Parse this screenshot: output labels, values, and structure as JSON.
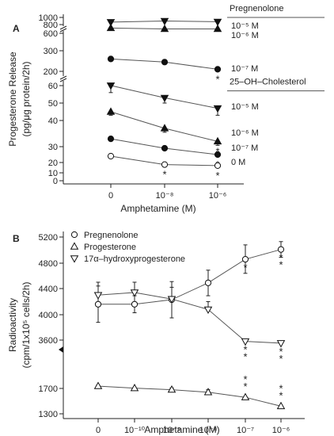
{
  "chart_data": [
    {
      "panel": "A",
      "type": "line",
      "xlabel": "Amphetamine (M)",
      "ylabel_line1": "Progesterone Release",
      "ylabel_line2": "(pg/μg protein/2h)",
      "categories": [
        "0",
        "10⁻⁸",
        "10⁻⁶"
      ],
      "y_scale": "broken",
      "y_ticks": [
        {
          "value": 0,
          "label": "0"
        },
        {
          "value": 10,
          "label": "10"
        },
        {
          "value": 20,
          "label": "20"
        },
        {
          "value": 30,
          "label": "30"
        },
        {
          "value": 40,
          "label": "40"
        },
        {
          "value": 50,
          "label": "50"
        },
        {
          "value": 60,
          "label": "60"
        },
        {
          "value": 200,
          "label": "200"
        },
        {
          "value": 300,
          "label": "300"
        },
        {
          "value": 600,
          "label": "600"
        },
        {
          "value": 800,
          "label": "800"
        },
        {
          "value": 1000,
          "label": "1000"
        }
      ],
      "group_headers": [
        {
          "label": "Pregnenolone",
          "anchor_value": 1000
        },
        {
          "label": "25–OH–Cholesterol",
          "anchor_value": 57
        }
      ],
      "series": [
        {
          "label": "10⁻⁵ M",
          "marker": "triangle-down-filled",
          "values": [
            870,
            900,
            880
          ],
          "err": [
            0,
            0,
            0
          ],
          "stars": [
            "",
            "",
            ""
          ]
        },
        {
          "label": "10⁻⁶ M",
          "marker": "triangle-up-filled",
          "values": [
            720,
            700,
            700
          ],
          "err": [
            0,
            0,
            0
          ],
          "stars": [
            "",
            "",
            ""
          ]
        },
        {
          "label": "10⁻⁷ M",
          "marker": "circle-filled",
          "values": [
            260,
            245,
            210
          ],
          "err": [
            0,
            0,
            0
          ],
          "stars": [
            "",
            "",
            "*"
          ]
        },
        {
          "label": "10⁻⁵ M",
          "marker": "triangle-down-filled",
          "values": [
            61,
            53,
            47
          ],
          "err": [
            5,
            3,
            4
          ],
          "stars": [
            "",
            "",
            ""
          ]
        },
        {
          "label": "10⁻⁶ M",
          "marker": "triangle-up-filled",
          "values": [
            45,
            37,
            32
          ],
          "err": [
            2,
            1.5,
            1.5
          ],
          "stars": [
            "",
            "",
            "*"
          ]
        },
        {
          "label": "10⁻⁷ M",
          "marker": "circle-filled",
          "values": [
            33,
            29,
            25
          ],
          "err": [
            0,
            0,
            0
          ],
          "stars": [
            "",
            "",
            "*"
          ]
        },
        {
          "label": "0 M",
          "marker": "circle-open",
          "values": [
            24,
            18,
            17
          ],
          "err": [
            0,
            0,
            0
          ],
          "stars": [
            "",
            "*",
            "*"
          ]
        }
      ]
    },
    {
      "panel": "B",
      "type": "line",
      "xlabel": "Amphetamine (M)",
      "ylabel_line1": "Radioactivity",
      "ylabel_line2": "(cpm/1x10⁵ cells/2h)",
      "categories": [
        "0",
        "10⁻¹⁰",
        "10⁻⁹",
        "10⁻⁸",
        "10⁻⁷",
        "10⁻⁶"
      ],
      "y_scale": "broken",
      "y_ticks": [
        {
          "value": 1300,
          "label": "1300"
        },
        {
          "value": 1700,
          "label": "1700"
        },
        {
          "value": 3600,
          "label": "3600"
        },
        {
          "value": 4000,
          "label": "4000"
        },
        {
          "value": 4400,
          "label": "4400"
        },
        {
          "value": 4800,
          "label": "4800"
        },
        {
          "value": 5200,
          "label": "5200"
        }
      ],
      "legend": "top-left",
      "series": [
        {
          "name": "Pregnenolone",
          "marker": "circle-open",
          "values": [
            4160,
            4160,
            4230,
            4490,
            4860,
            5010
          ],
          "err": [
            280,
            130,
            280,
            200,
            220,
            120
          ],
          "stars": [
            "",
            "",
            "",
            "",
            "*",
            "**"
          ]
        },
        {
          "name": "Progesterone",
          "marker": "triangle-up-open",
          "values": [
            1790,
            1710,
            1680,
            1640,
            1560,
            1420
          ],
          "err": [
            40,
            0,
            40,
            40,
            0,
            0
          ],
          "stars": [
            "",
            "",
            "",
            "",
            "**",
            "**"
          ]
        },
        {
          "name": "17α–hydroxyprogesterone",
          "marker": "triangle-down-open",
          "values": [
            4300,
            4340,
            4240,
            4080,
            3550,
            3480
          ],
          "err": [
            200,
            160,
            180,
            120,
            0,
            0
          ],
          "stars": [
            "",
            "",
            "",
            "",
            "**",
            "**"
          ]
        }
      ]
    }
  ]
}
